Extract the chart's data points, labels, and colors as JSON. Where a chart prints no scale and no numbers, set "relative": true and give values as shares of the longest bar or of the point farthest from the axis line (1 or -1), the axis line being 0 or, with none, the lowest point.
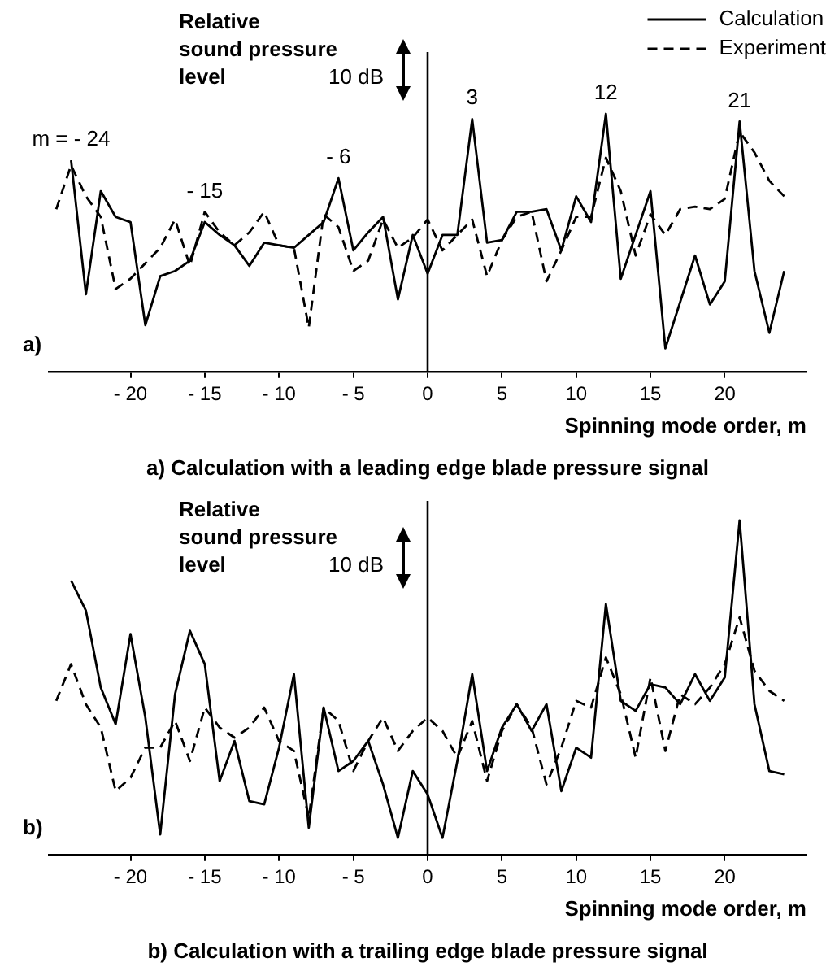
{
  "chart_data": [
    {
      "type": "line",
      "title": "a) Calculation with a leading edge blade pressure signal",
      "xlabel": "Spinning mode order, m",
      "ylabel": "Relative sound pressure level",
      "relative": true,
      "legend": "top right",
      "marker": "none",
      "xlim": [
        -25.5,
        25.5
      ],
      "xticks": [
        {
          "value": -20,
          "label": "- 20"
        },
        {
          "value": -15,
          "label": "- 15"
        },
        {
          "value": -10,
          "label": "- 10"
        },
        {
          "value": -5,
          "label": "- 5"
        },
        0,
        5,
        10,
        15,
        20
      ],
      "ref_lines": [
        {
          "axis": "x",
          "value": 0
        }
      ],
      "annotations": [
        "10 dB",
        "a)",
        {
          "text": "m = - 24",
          "x": -24,
          "y": 0.82
        },
        {
          "text": "- 15",
          "x": -15,
          "y": 0.62
        },
        {
          "text": "- 6",
          "x": -6,
          "y": 0.75
        },
        {
          "text": "3",
          "x": 3,
          "y": 0.98
        },
        {
          "text": "12",
          "x": 12,
          "y": 1.0
        },
        {
          "text": "21",
          "x": 21,
          "y": 0.97
        }
      ],
      "series": [
        {
          "name": "Calculation",
          "color": "#000000",
          "line_style": "solid",
          "x": [
            -24,
            -23,
            -22,
            -21,
            -20,
            -19,
            -18,
            -17,
            -16,
            -15,
            -14,
            -13,
            -12,
            -11,
            -10,
            -9,
            -8,
            -7,
            -6,
            -5,
            -4,
            -3,
            -2,
            -1,
            0,
            1,
            2,
            3,
            4,
            5,
            6,
            7,
            8,
            9,
            10,
            11,
            12,
            13,
            14,
            15,
            16,
            17,
            18,
            19,
            20,
            21,
            22,
            23,
            24
          ],
          "values": [
            0.82,
            0.3,
            0.7,
            0.6,
            0.58,
            0.18,
            0.37,
            0.39,
            0.43,
            0.58,
            0.53,
            0.49,
            0.41,
            0.5,
            0.49,
            0.48,
            0.53,
            0.58,
            0.75,
            0.47,
            0.54,
            0.6,
            0.28,
            0.53,
            0.38,
            0.53,
            0.53,
            0.98,
            0.5,
            0.51,
            0.62,
            0.62,
            0.63,
            0.47,
            0.68,
            0.58,
            1.0,
            0.36,
            0.53,
            0.7,
            0.09,
            0.27,
            0.45,
            0.26,
            0.35,
            0.97,
            0.39,
            0.15,
            0.39
          ]
        },
        {
          "name": "Experiment",
          "color": "#000000",
          "line_style": "dashed",
          "x": [
            -25,
            -24,
            -23,
            -22,
            -21,
            -20,
            -19,
            -18,
            -17,
            -16,
            -15,
            -14,
            -13,
            -12,
            -11,
            -10,
            -9,
            -8,
            -7,
            -6,
            -5,
            -4,
            -3,
            -2,
            -1,
            0,
            1,
            2,
            3,
            4,
            5,
            6,
            7,
            8,
            9,
            10,
            11,
            12,
            13,
            14,
            15,
            16,
            17,
            18,
            19,
            20,
            21,
            22,
            23,
            24
          ],
          "values": [
            0.63,
            0.8,
            0.68,
            0.6,
            0.32,
            0.36,
            0.42,
            0.48,
            0.59,
            0.41,
            0.62,
            0.54,
            0.49,
            0.54,
            0.62,
            0.49,
            0.48,
            0.17,
            0.61,
            0.56,
            0.39,
            0.43,
            0.59,
            0.48,
            0.52,
            0.59,
            0.47,
            0.53,
            0.59,
            0.37,
            0.51,
            0.6,
            0.62,
            0.35,
            0.47,
            0.6,
            0.6,
            0.83,
            0.7,
            0.45,
            0.61,
            0.53,
            0.63,
            0.64,
            0.63,
            0.67,
            0.93,
            0.85,
            0.74,
            0.68
          ]
        }
      ]
    },
    {
      "type": "line",
      "title": "b) Calculation with a trailing edge blade pressure signal",
      "xlabel": "Spinning mode order, m",
      "ylabel": "Relative sound pressure level",
      "relative": true,
      "marker": "none",
      "xlim": [
        -25.5,
        25.5
      ],
      "xticks": [
        {
          "value": -20,
          "label": "- 20"
        },
        {
          "value": -15,
          "label": "- 15"
        },
        {
          "value": -10,
          "label": "- 10"
        },
        {
          "value": -5,
          "label": "- 5"
        },
        0,
        5,
        10,
        15,
        20
      ],
      "ref_lines": [
        {
          "axis": "x",
          "value": 0
        }
      ],
      "annotations": [
        "10 dB",
        "b)"
      ],
      "series": [
        {
          "color": "#000000",
          "line_style": "solid",
          "x": [
            -24,
            -23,
            -22,
            -21,
            -20,
            -19,
            -18,
            -17,
            -16,
            -15,
            -14,
            -13,
            -12,
            -11,
            -10,
            -9,
            -8,
            -7,
            -6,
            -5,
            -4,
            -3,
            -2,
            -1,
            0,
            1,
            2,
            3,
            4,
            5,
            6,
            7,
            8,
            9,
            10,
            11,
            12,
            13,
            14,
            15,
            16,
            17,
            18,
            19,
            20,
            21,
            22,
            23,
            24
          ],
          "values": [
            0.82,
            0.73,
            0.5,
            0.39,
            0.66,
            0.41,
            0.06,
            0.48,
            0.67,
            0.57,
            0.22,
            0.34,
            0.16,
            0.15,
            0.32,
            0.54,
            0.08,
            0.44,
            0.25,
            0.28,
            0.34,
            0.21,
            0.05,
            0.25,
            0.18,
            0.05,
            0.28,
            0.54,
            0.25,
            0.38,
            0.45,
            0.37,
            0.45,
            0.19,
            0.32,
            0.29,
            0.75,
            0.46,
            0.43,
            0.51,
            0.5,
            0.45,
            0.54,
            0.46,
            0.53,
            1.0,
            0.45,
            0.25,
            0.24
          ]
        },
        {
          "color": "#000000",
          "line_style": "dashed",
          "x": [
            -25,
            -24,
            -23,
            -22,
            -21,
            -20,
            -19,
            -18,
            -17,
            -16,
            -15,
            -14,
            -13,
            -12,
            -11,
            -10,
            -9,
            -8,
            -7,
            -6,
            -5,
            -4,
            -3,
            -2,
            -1,
            0,
            1,
            2,
            3,
            4,
            5,
            6,
            7,
            8,
            9,
            10,
            11,
            12,
            13,
            14,
            15,
            16,
            17,
            18,
            19,
            20,
            21,
            22,
            23,
            24
          ],
          "values": [
            0.46,
            0.57,
            0.45,
            0.38,
            0.19,
            0.23,
            0.32,
            0.32,
            0.4,
            0.28,
            0.44,
            0.38,
            0.35,
            0.38,
            0.44,
            0.34,
            0.31,
            0.11,
            0.44,
            0.4,
            0.25,
            0.34,
            0.41,
            0.31,
            0.37,
            0.41,
            0.37,
            0.29,
            0.4,
            0.22,
            0.37,
            0.45,
            0.38,
            0.21,
            0.32,
            0.46,
            0.44,
            0.59,
            0.48,
            0.29,
            0.53,
            0.31,
            0.48,
            0.45,
            0.5,
            0.57,
            0.71,
            0.55,
            0.49,
            0.46
          ]
        }
      ]
    }
  ]
}
